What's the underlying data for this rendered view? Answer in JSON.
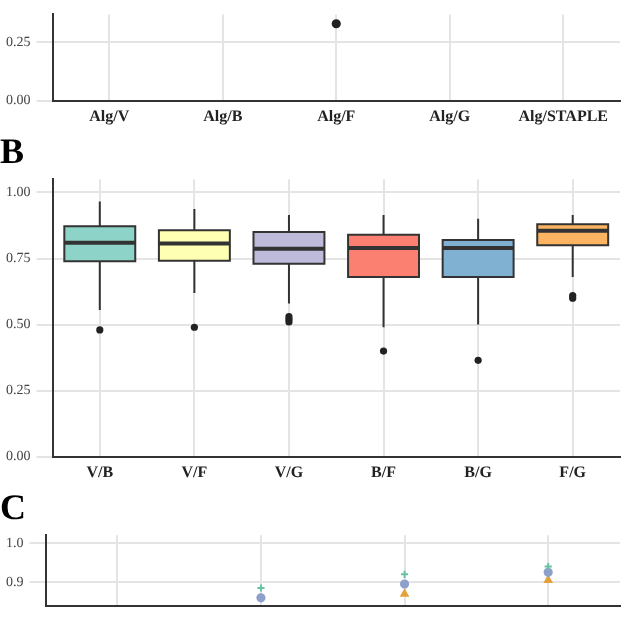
{
  "chart_data": [
    {
      "type": "scatter",
      "categories": [
        "Alg/V",
        "Alg/B",
        "Alg/F",
        "Alg/G",
        "Alg/STAPLE"
      ],
      "ylim": [
        0,
        0.37
      ],
      "yticks": [
        {
          "value": 0,
          "label": "0.00"
        },
        0.25
      ],
      "grid": true,
      "marker": "circle",
      "series": [
        {
          "color": "#222222",
          "values": [
            null,
            null,
            0.33,
            null,
            null
          ]
        }
      ]
    },
    {
      "type": "box",
      "title": "B",
      "categories": [
        "V/B",
        "V/F",
        "V/G",
        "B/F",
        "B/G",
        "F/G"
      ],
      "ylim": [
        0,
        1.05
      ],
      "yticks": [
        {
          "value": 0,
          "label": "0.00"
        },
        0.25,
        {
          "value": 0.5,
          "label": "0.50"
        },
        0.75,
        {
          "value": 1,
          "label": "1.00"
        }
      ],
      "grid": true,
      "colors": [
        "#8dd3c7",
        "#ffffb3",
        "#bebada",
        "#fb8072",
        "#80b1d3",
        "#fdb462"
      ],
      "boxes": [
        {
          "low": 0.555,
          "q1": 0.74,
          "median": 0.81,
          "q3": 0.872,
          "high": 0.966,
          "outliers": [
            0.48
          ]
        },
        {
          "low": 0.62,
          "q1": 0.742,
          "median": 0.807,
          "q3": 0.857,
          "high": 0.937,
          "outliers": [
            0.49
          ]
        },
        {
          "low": 0.58,
          "q1": 0.73,
          "median": 0.787,
          "q3": 0.85,
          "high": 0.915,
          "outliers": [
            0.51,
            0.52,
            0.53
          ]
        },
        {
          "low": 0.49,
          "q1": 0.68,
          "median": 0.79,
          "q3": 0.84,
          "high": 0.915,
          "outliers": [
            0.4
          ]
        },
        {
          "low": 0.5,
          "q1": 0.68,
          "median": 0.79,
          "q3": 0.82,
          "high": 0.9,
          "outliers": [
            0.365
          ]
        },
        {
          "low": 0.68,
          "q1": 0.8,
          "median": 0.855,
          "q3": 0.88,
          "high": 0.915,
          "outliers": [
            0.6,
            0.61
          ]
        }
      ]
    },
    {
      "type": "scatter",
      "title": "C",
      "categories": [
        null,
        null,
        null,
        null
      ],
      "ylim": [
        0.84,
        1.02
      ],
      "yticks": [
        0.9,
        {
          "value": 1,
          "label": "1.0"
        }
      ],
      "grid": true,
      "tick_labels": "y",
      "series": [
        {
          "color": "#66c2a5",
          "marker": "cross",
          "values": [
            null,
            0.885,
            0.92,
            0.94
          ]
        },
        {
          "color": "#8da0cb",
          "marker": "circle",
          "values": [
            null,
            0.86,
            0.895,
            0.925
          ]
        },
        {
          "color": "#e5a03a",
          "marker": "triangle",
          "values": [
            null,
            null,
            0.87,
            0.905
          ]
        }
      ]
    }
  ]
}
